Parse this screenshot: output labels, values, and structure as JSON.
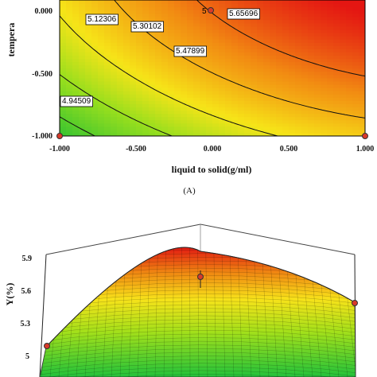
{
  "chart_data": [
    {
      "type": "contour",
      "xlabel": "liquid to solid(g/ml)",
      "ylabel": "tempera",
      "xlim": [
        -1,
        1
      ],
      "ylim": [
        -1,
        0.2
      ],
      "x_ticks": [
        "-1.000",
        "-0.500",
        "0.000",
        "0.500",
        "1.000"
      ],
      "y_ticks": [
        "0.000",
        "-0.500",
        "-1.000"
      ],
      "x_tick_values": [
        -1,
        -0.5,
        0,
        0.5,
        1
      ],
      "y_tick_values": [
        0,
        -0.5,
        -1
      ],
      "contours": [
        {
          "label": "4.94509",
          "value": 4.94509
        },
        {
          "label": "5.12306",
          "value": 5.12306
        },
        {
          "label": "5.30102",
          "value": 5.30102
        },
        {
          "label": "5.47899",
          "value": 5.47899
        },
        {
          "label": "5.65696",
          "value": 5.65696
        }
      ],
      "design_points": [
        {
          "x": 0,
          "y": 0,
          "label": "5"
        },
        {
          "x": -1,
          "y": -1,
          "label": ""
        },
        {
          "x": 1,
          "y": -1,
          "label": ""
        }
      ],
      "colormap": [
        "green",
        "yellow",
        "orange",
        "red"
      ],
      "panel_label": "(A)"
    },
    {
      "type": "surface",
      "zlabel": "Y(%)",
      "z_ticks": [
        "5",
        "5.3",
        "5.6",
        "5.9"
      ],
      "z_tick_values": [
        5,
        5.3,
        5.6,
        5.9
      ],
      "colormap": [
        "green",
        "yellow",
        "orange",
        "red"
      ]
    }
  ]
}
